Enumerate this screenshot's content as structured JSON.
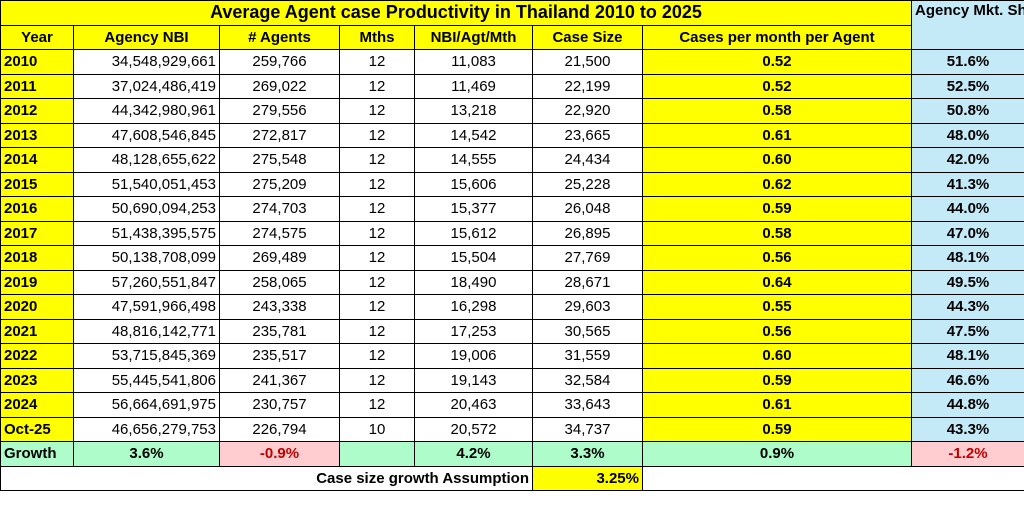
{
  "chart_data": {
    "type": "table",
    "title": "Average Agent case Productivity in Thailand 2010 to 2025",
    "market_share_header": "Agency Mkt. Sh.",
    "columns": [
      "Year",
      "Agency NBI",
      "# Agents",
      "Mths",
      "NBI/Agt/Mth",
      "Case Size",
      "Cases per month per Agent"
    ],
    "rows": [
      {
        "year": "2010",
        "nbi": "34,548,929,661",
        "agents": "259,766",
        "mths": "12",
        "nbi_agt_mth": "11,083",
        "case_size": "21,500",
        "cases": "0.52",
        "mkt": "51.6%"
      },
      {
        "year": "2011",
        "nbi": "37,024,486,419",
        "agents": "269,022",
        "mths": "12",
        "nbi_agt_mth": "11,469",
        "case_size": "22,199",
        "cases": "0.52",
        "mkt": "52.5%"
      },
      {
        "year": "2012",
        "nbi": "44,342,980,961",
        "agents": "279,556",
        "mths": "12",
        "nbi_agt_mth": "13,218",
        "case_size": "22,920",
        "cases": "0.58",
        "mkt": "50.8%"
      },
      {
        "year": "2013",
        "nbi": "47,608,546,845",
        "agents": "272,817",
        "mths": "12",
        "nbi_agt_mth": "14,542",
        "case_size": "23,665",
        "cases": "0.61",
        "mkt": "48.0%"
      },
      {
        "year": "2014",
        "nbi": "48,128,655,622",
        "agents": "275,548",
        "mths": "12",
        "nbi_agt_mth": "14,555",
        "case_size": "24,434",
        "cases": "0.60",
        "mkt": "42.0%"
      },
      {
        "year": "2015",
        "nbi": "51,540,051,453",
        "agents": "275,209",
        "mths": "12",
        "nbi_agt_mth": "15,606",
        "case_size": "25,228",
        "cases": "0.62",
        "mkt": "41.3%"
      },
      {
        "year": "2016",
        "nbi": "50,690,094,253",
        "agents": "274,703",
        "mths": "12",
        "nbi_agt_mth": "15,377",
        "case_size": "26,048",
        "cases": "0.59",
        "mkt": "44.0%"
      },
      {
        "year": "2017",
        "nbi": "51,438,395,575",
        "agents": "274,575",
        "mths": "12",
        "nbi_agt_mth": "15,612",
        "case_size": "26,895",
        "cases": "0.58",
        "mkt": "47.0%"
      },
      {
        "year": "2018",
        "nbi": "50,138,708,099",
        "agents": "269,489",
        "mths": "12",
        "nbi_agt_mth": "15,504",
        "case_size": "27,769",
        "cases": "0.56",
        "mkt": "48.1%"
      },
      {
        "year": "2019",
        "nbi": "57,260,551,847",
        "agents": "258,065",
        "mths": "12",
        "nbi_agt_mth": "18,490",
        "case_size": "28,671",
        "cases": "0.64",
        "mkt": "49.5%"
      },
      {
        "year": "2020",
        "nbi": "47,591,966,498",
        "agents": "243,338",
        "mths": "12",
        "nbi_agt_mth": "16,298",
        "case_size": "29,603",
        "cases": "0.55",
        "mkt": "44.3%"
      },
      {
        "year": "2021",
        "nbi": "48,816,142,771",
        "agents": "235,781",
        "mths": "12",
        "nbi_agt_mth": "17,253",
        "case_size": "30,565",
        "cases": "0.56",
        "mkt": "47.5%"
      },
      {
        "year": "2022",
        "nbi": "53,715,845,369",
        "agents": "235,517",
        "mths": "12",
        "nbi_agt_mth": "19,006",
        "case_size": "31,559",
        "cases": "0.60",
        "mkt": "48.1%"
      },
      {
        "year": "2023",
        "nbi": "55,445,541,806",
        "agents": "241,367",
        "mths": "12",
        "nbi_agt_mth": "19,143",
        "case_size": "32,584",
        "cases": "0.59",
        "mkt": "46.6%"
      },
      {
        "year": "2024",
        "nbi": "56,664,691,975",
        "agents": "230,757",
        "mths": "12",
        "nbi_agt_mth": "20,463",
        "case_size": "33,643",
        "cases": "0.61",
        "mkt": "44.8%"
      },
      {
        "year": "Oct-25",
        "nbi": "46,656,279,753",
        "agents": "226,794",
        "mths": "10",
        "nbi_agt_mth": "20,572",
        "case_size": "34,737",
        "cases": "0.59",
        "mkt": "43.3%"
      }
    ],
    "growth_row": {
      "label": "Growth",
      "nbi": "3.6%",
      "agents": "-0.9%",
      "nbi_agt_mth": "4.2%",
      "case_size": "3.3%",
      "cases": "0.9%",
      "mkt": "-1.2%"
    },
    "assumption": {
      "label": "Case size growth Assumption",
      "value": "3.25%"
    }
  },
  "colors": {
    "yellow": "#ffff00",
    "light_blue": "#c5eaf7",
    "green": "#adfcc9",
    "pink": "#ffccd0",
    "negative_text": "#c00000"
  }
}
